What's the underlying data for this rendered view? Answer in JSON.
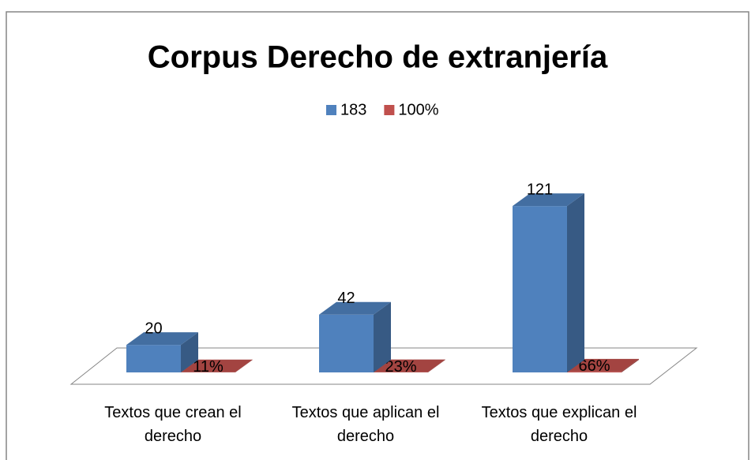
{
  "chart_data": {
    "type": "bar3d",
    "title": "Corpus Derecho de extranjería",
    "categories": [
      "Textos que crean el derecho",
      "Textos que aplican el derecho",
      "Textos que explican el derecho"
    ],
    "series": [
      {
        "name": "183",
        "color": "#4f81bd",
        "values": [
          20,
          42,
          121
        ]
      },
      {
        "name": "100%",
        "color": "#c0504d",
        "values": [
          0.11,
          0.23,
          0.66
        ],
        "value_labels": [
          "11%",
          "23%",
          "66%"
        ]
      }
    ],
    "ylim": [
      0,
      140
    ],
    "legend": "top"
  }
}
